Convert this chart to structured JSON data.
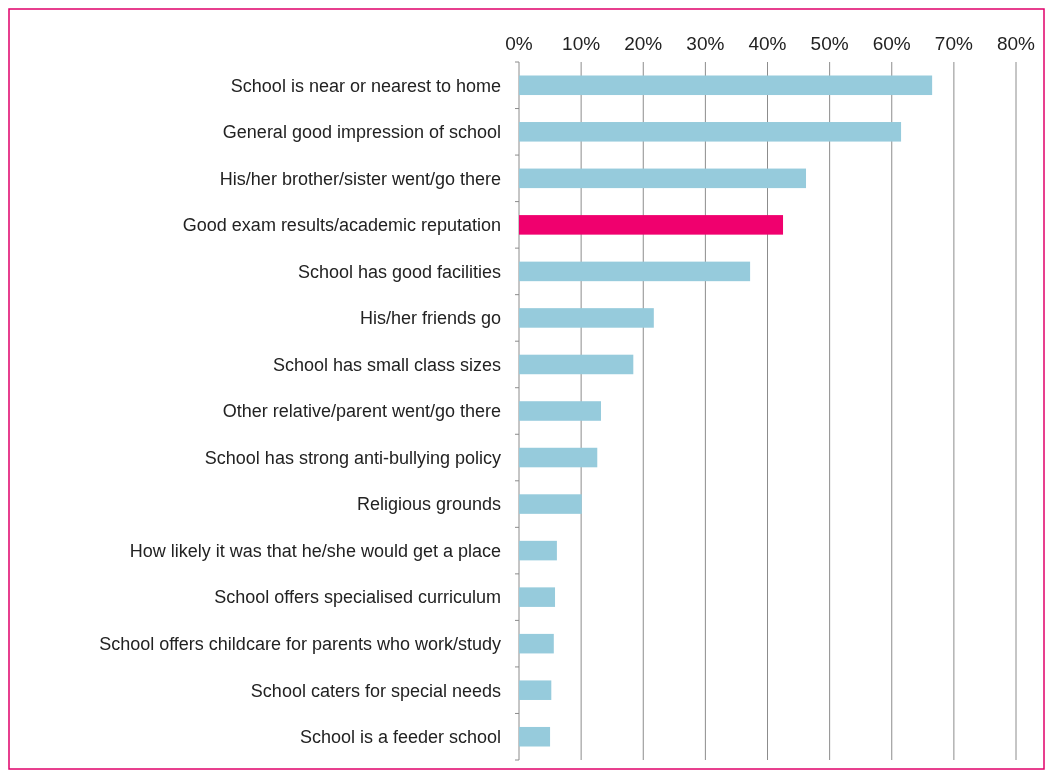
{
  "chart_data": {
    "type": "bar",
    "orientation": "horizontal",
    "categories": [
      "School is near or nearest to home",
      "General good impression of school",
      "His/her brother/sister went/go there",
      "Good exam results/academic reputation",
      "School has good facilities",
      "His/her friends go",
      "School has small class sizes",
      "Other relative/parent went/go there",
      "School has strong anti-bullying policy",
      "Religious grounds",
      "How likely it was that he/she would get a place",
      "School offers specialised curriculum",
      "School offers childcare for parents who work/study",
      "School caters for special needs",
      "School is a feeder school"
    ],
    "values": [
      66.5,
      61.5,
      46.2,
      42.5,
      37.2,
      21.7,
      18.4,
      13.2,
      12.6,
      10.1,
      6.1,
      5.8,
      5.6,
      5.2,
      5.0
    ],
    "colors": [
      "#96cbdc",
      "#96cbdc",
      "#96cbdc",
      "#f0006e",
      "#96cbdc",
      "#96cbdc",
      "#96cbdc",
      "#96cbdc",
      "#96cbdc",
      "#96cbdc",
      "#96cbdc",
      "#96cbdc",
      "#96cbdc",
      "#96cbdc",
      "#96cbdc"
    ],
    "xlim": [
      0,
      80
    ],
    "xticks": [
      {
        "value": 0,
        "label": "0%"
      },
      {
        "value": 10,
        "label": "10%"
      },
      {
        "value": 20,
        "label": "20%"
      },
      {
        "value": 30,
        "label": "30%"
      },
      {
        "value": 40,
        "label": "40%"
      },
      {
        "value": 50,
        "label": "50%"
      },
      {
        "value": 60,
        "label": "60%"
      },
      {
        "value": 70,
        "label": "70%"
      },
      {
        "value": 80,
        "label": "80%"
      }
    ],
    "grid": "x"
  }
}
